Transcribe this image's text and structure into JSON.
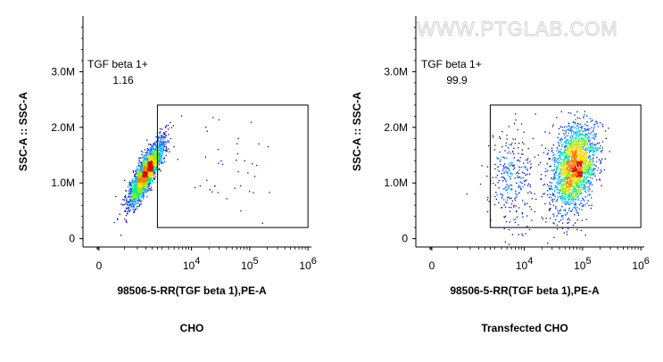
{
  "watermark": "WWW.PTGLAB.COM",
  "colors": {
    "axis": "#000000",
    "density_scale": [
      "#0000a8",
      "#0050ff",
      "#00b4ff",
      "#00e6a0",
      "#8cf000",
      "#ffdc00",
      "#ff8000",
      "#e00000"
    ]
  },
  "chart_data": [
    {
      "type": "scatter",
      "subtype": "flow-cytometry density dot plot",
      "caption": "CHO",
      "xlabel": "98506-5-RR(TGF beta 1),PE-A",
      "ylabel": "SSC-A :: SSC-A",
      "x_scale": "biexponential",
      "x_ticks": [
        {
          "value": 0,
          "label": "0"
        },
        {
          "value": 10000,
          "base": "10",
          "exp": "4"
        },
        {
          "value": 100000,
          "base": "10",
          "exp": "5"
        },
        {
          "value": 1000000,
          "base": "10",
          "exp": "6"
        }
      ],
      "y_ticks": [
        {
          "value": 0,
          "label": "0"
        },
        {
          "value": 1000000,
          "label": "1.0M"
        },
        {
          "value": 2000000,
          "label": "2.0M"
        },
        {
          "value": 3000000,
          "label": "3.0M"
        }
      ],
      "ylim": [
        -150000,
        4000000
      ],
      "gate": {
        "name": "TGF beta 1+",
        "percent": "1.16",
        "x_range": [
          2500,
          1000000
        ],
        "y_range": [
          200000,
          2400000
        ]
      },
      "populations": [
        {
          "name": "main",
          "x_center": 1500,
          "x_spread": 0.26,
          "y_center": 1200000,
          "y_spread": 280000,
          "tilt": 0.75,
          "fraction": 0.985
        },
        {
          "name": "scatter-positive",
          "x_center": 40000,
          "x_spread": 1.1,
          "y_center": 1200000,
          "y_spread": 450000,
          "tilt": 0,
          "fraction": 0.015
        }
      ]
    },
    {
      "type": "scatter",
      "subtype": "flow-cytometry density dot plot",
      "caption": "Transfected CHO",
      "xlabel": "98506-5-RR(TGF beta 1),PE-A",
      "ylabel": "SSC-A :: SSC-A",
      "x_scale": "biexponential",
      "x_ticks": [
        {
          "value": 0,
          "label": "0"
        },
        {
          "value": 10000,
          "base": "10",
          "exp": "4"
        },
        {
          "value": 100000,
          "base": "10",
          "exp": "5"
        },
        {
          "value": 1000000,
          "base": "10",
          "exp": "6"
        }
      ],
      "y_ticks": [
        {
          "value": 0,
          "label": "0"
        },
        {
          "value": 1000000,
          "label": "1.0M"
        },
        {
          "value": 2000000,
          "label": "2.0M"
        },
        {
          "value": 3000000,
          "label": "3.0M"
        }
      ],
      "ylim": [
        -150000,
        4000000
      ],
      "gate": {
        "name": "TGF beta 1+",
        "percent": "99.9",
        "x_range": [
          2500,
          1000000
        ],
        "y_range": [
          200000,
          2400000
        ]
      },
      "populations": [
        {
          "name": "main",
          "x_center": 70000,
          "x_spread": 0.55,
          "y_center": 1300000,
          "y_spread": 380000,
          "tilt": 0.35,
          "fraction": 0.88
        },
        {
          "name": "dim-tail",
          "x_center": 6000,
          "x_spread": 0.7,
          "y_center": 1100000,
          "y_spread": 420000,
          "tilt": 0,
          "fraction": 0.12
        }
      ]
    }
  ]
}
